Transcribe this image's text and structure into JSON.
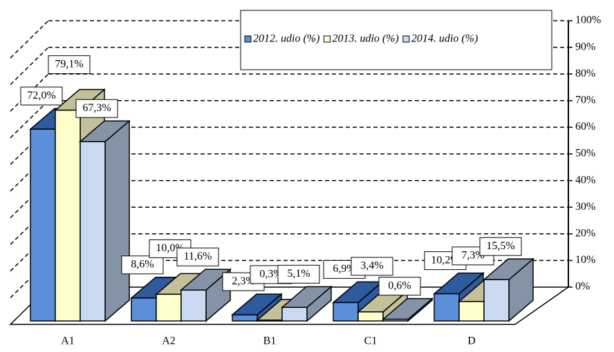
{
  "chart_data": {
    "type": "bar3d",
    "categories": [
      "A1",
      "A2",
      "B1",
      "C1",
      "D"
    ],
    "series": [
      {
        "name": "2012. udio (%)",
        "color": "#5b8fd9",
        "top": "#2e5a9e",
        "values": [
          72.0,
          8.6,
          2.3,
          6.9,
          10.2
        ],
        "value_labels": [
          "72,0%",
          "8,6%",
          "2,3%",
          "6,9%",
          "10,2%"
        ]
      },
      {
        "name": "2013. udio (%)",
        "color": "#ffffcc",
        "top": "#c4c09a",
        "values": [
          79.1,
          10.0,
          0.3,
          3.4,
          7.3
        ],
        "value_labels": [
          "79,1%",
          "10,0%",
          "0,3%",
          "3,4%",
          "7,3%"
        ]
      },
      {
        "name": "2014. udio (%)",
        "color": "#c9d9f1",
        "top": "#8494a6",
        "values": [
          67.3,
          11.6,
          5.1,
          0.6,
          15.5
        ],
        "value_labels": [
          "67,3%",
          "11,6%",
          "5,1%",
          "0,6%",
          "15,5%"
        ]
      }
    ],
    "ylim": [
      0,
      100
    ],
    "yticks": [
      {
        "value": 0,
        "label": "0%"
      },
      {
        "value": 10,
        "label": "10%"
      },
      {
        "value": 20,
        "label": "20%"
      },
      {
        "value": 30,
        "label": "30%"
      },
      {
        "value": 40,
        "label": "40%"
      },
      {
        "value": 50,
        "label": "50%"
      },
      {
        "value": 60,
        "label": "60%"
      },
      {
        "value": 70,
        "label": "70%"
      },
      {
        "value": 80,
        "label": "80%"
      },
      {
        "value": 90,
        "label": "90%"
      },
      {
        "value": 100,
        "label": "100%"
      }
    ],
    "grid": true,
    "legend": "top"
  }
}
